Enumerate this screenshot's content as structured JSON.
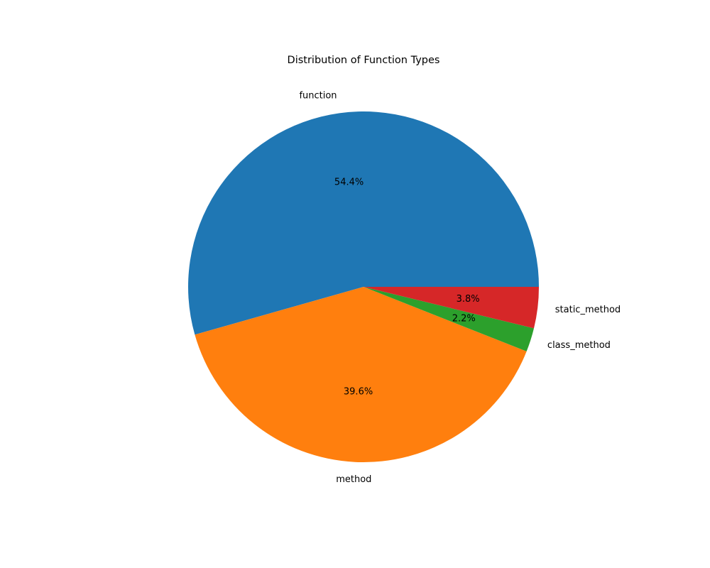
{
  "chart_data": {
    "type": "pie",
    "title": "Distribution of Function Types",
    "slices": [
      {
        "label": "function",
        "value": 54.4,
        "pct_label": "54.4%",
        "color": "#1f77b4"
      },
      {
        "label": "method",
        "value": 39.6,
        "pct_label": "39.6%",
        "color": "#ff7f0e"
      },
      {
        "label": "class_method",
        "value": 2.2,
        "pct_label": "2.2%",
        "color": "#2ca02c"
      },
      {
        "label": "static_method",
        "value": 3.8,
        "pct_label": "3.8%",
        "color": "#d62728"
      }
    ],
    "start_angle_deg": 0,
    "direction": "counterclockwise",
    "legend": "none"
  }
}
